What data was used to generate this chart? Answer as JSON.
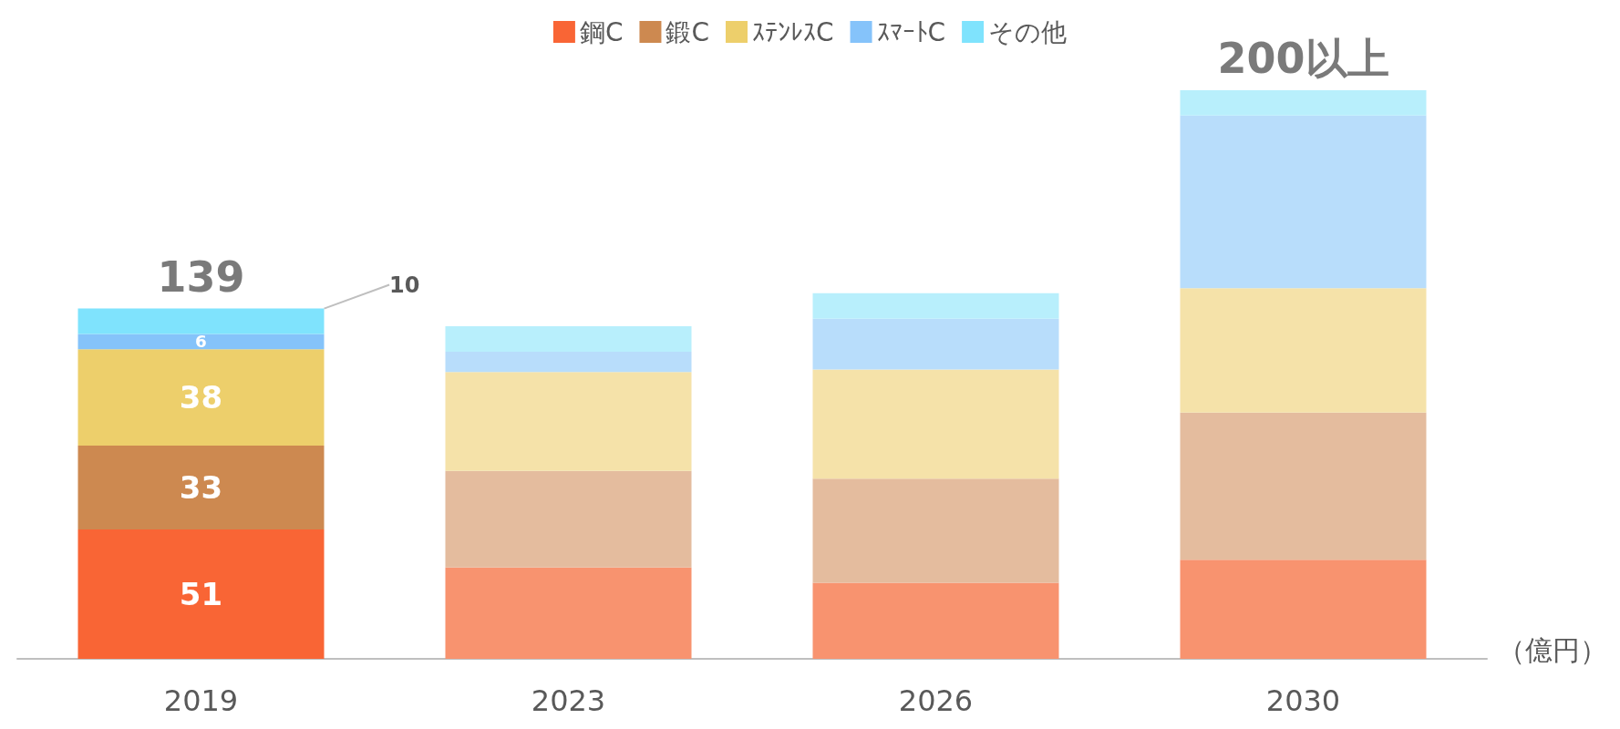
{
  "chart_data": {
    "type": "bar",
    "stacked": true,
    "legend": "top",
    "ylim": [
      0,
      224
    ],
    "tick_labels": "x",
    "categories": [
      "2019",
      "2023",
      "2026",
      "2030"
    ],
    "series": [
      {
        "name": "鋼C",
        "color": "#f96535",
        "colors": [
          "#f96535",
          "#f8936f",
          "#f8936f",
          "#f8936f"
        ],
        "values": [
          51,
          36,
          30,
          39
        ],
        "value_labels": [
          "51",
          null,
          null,
          null
        ]
      },
      {
        "name": "鍛C",
        "color": "#cd8950",
        "colors": [
          "#cd8950",
          "#e4bc9e",
          "#e4bc9e",
          "#e4bc9e"
        ],
        "values": [
          33,
          38,
          41,
          58
        ],
        "value_labels": [
          "33",
          null,
          null,
          null
        ]
      },
      {
        "name": "ｽﾃﾝﾚｽC",
        "color": "#edcf6b",
        "colors": [
          "#edcf6b",
          "#f5e2a9",
          "#f5e2a9",
          "#f5e2a9"
        ],
        "values": [
          38,
          39,
          43,
          49
        ],
        "value_labels": [
          "38",
          null,
          null,
          null
        ]
      },
      {
        "name": "ｽﾏｰﾄC",
        "color": "#85c3fa",
        "colors": [
          "#85c3fa",
          "#b8ddfb",
          "#b8ddfb",
          "#b8ddfb"
        ],
        "values": [
          6,
          8,
          20,
          68
        ],
        "value_labels": [
          "6",
          null,
          null,
          null
        ]
      },
      {
        "name": "その他",
        "color": "#7fe3fd",
        "colors": [
          "#7fe3fd",
          "#b8effc",
          "#b8effc",
          "#b8effc"
        ],
        "values": [
          10,
          10,
          10,
          10
        ],
        "value_labels": [
          "10",
          null,
          null,
          null
        ]
      }
    ],
    "totals": [
      "139",
      null,
      null,
      null
    ],
    "annotations": [
      {
        "text": "200以上",
        "x": "2030",
        "y": 224
      },
      "（億円）"
    ]
  }
}
